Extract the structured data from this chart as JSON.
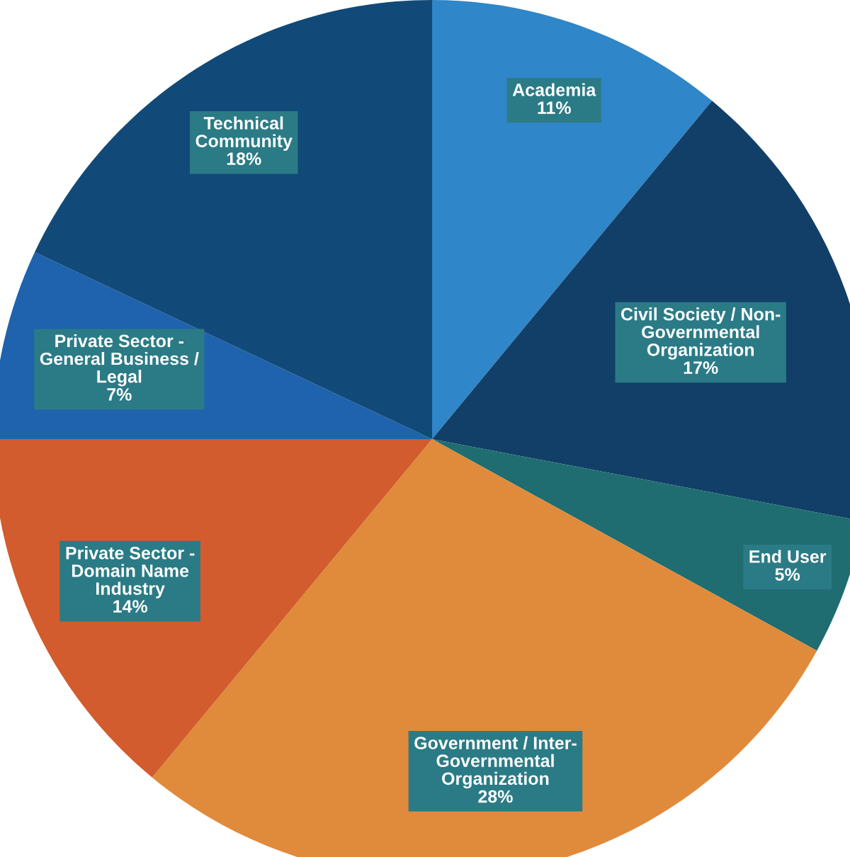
{
  "chart_data": {
    "type": "pie",
    "categories": [
      "Academia",
      "Civil Society / Non-\nGovernmental\nOrganization",
      "End User",
      "Government / Inter-\nGovernmental\nOrganization",
      "Private Sector -\nDomain Name\nIndustry",
      "Private Sector -\nGeneral Business /\nLegal",
      "Technical\nCommunity"
    ],
    "values": [
      11,
      17,
      5,
      28,
      14,
      7,
      18
    ],
    "colors": [
      "#2f86c9",
      "#123f68",
      "#1f6d70",
      "#e08b3b",
      "#d25c2d",
      "#1f62ad",
      "#114a78"
    ],
    "value_labels": [
      "11%",
      "17%",
      "5%",
      "28%",
      "14%",
      "7%",
      "18%"
    ]
  }
}
